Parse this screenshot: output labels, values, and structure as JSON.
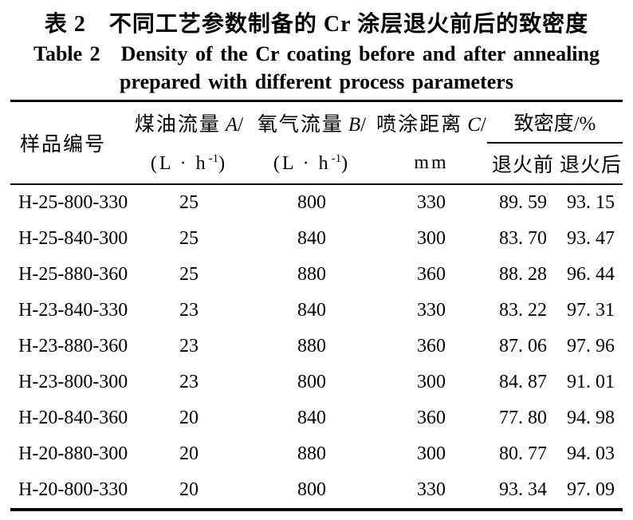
{
  "colors": {
    "background": "#ffffff",
    "text": "#000000",
    "rule": "#000000"
  },
  "titles": {
    "zh": "表 2　不同工艺参数制备的 Cr 涂层退火前后的致密度",
    "en_line1": "Table 2　Density of the Cr coating before and after annealing",
    "en_line2": "prepared with different process parameters"
  },
  "table": {
    "header": {
      "sample_id": "样品编号",
      "kerosene": {
        "zh": "煤油流量",
        "var": "A",
        "slash": "/",
        "unit": {
          "base": "(L · h",
          "sup": "-1",
          "close": ")"
        }
      },
      "oxygen": {
        "zh": "氧气流量",
        "var": "B",
        "slash": "/",
        "unit": {
          "base": "(L · h",
          "sup": "-1",
          "close": ")"
        }
      },
      "distance": {
        "zh": "喷涂距离",
        "var": "C",
        "slash": "/",
        "unit": {
          "base": "mm",
          "sup": "",
          "close": ""
        }
      },
      "density_group": "致密度/%",
      "before": "退火前",
      "after": "退火后"
    },
    "rows": [
      {
        "id": "H-25-800-330",
        "kerosene": "25",
        "oxygen": "800",
        "distance": "330",
        "before": "89. 59",
        "after": "93. 15"
      },
      {
        "id": "H-25-840-300",
        "kerosene": "25",
        "oxygen": "840",
        "distance": "300",
        "before": "83. 70",
        "after": "93. 47"
      },
      {
        "id": "H-25-880-360",
        "kerosene": "25",
        "oxygen": "880",
        "distance": "360",
        "before": "88. 28",
        "after": "96. 44"
      },
      {
        "id": "H-23-840-330",
        "kerosene": "23",
        "oxygen": "840",
        "distance": "330",
        "before": "83. 22",
        "after": "97. 31"
      },
      {
        "id": "H-23-880-360",
        "kerosene": "23",
        "oxygen": "880",
        "distance": "360",
        "before": "87. 06",
        "after": "97. 96"
      },
      {
        "id": "H-23-800-300",
        "kerosene": "23",
        "oxygen": "800",
        "distance": "300",
        "before": "84. 87",
        "after": "91. 01"
      },
      {
        "id": "H-20-840-360",
        "kerosene": "20",
        "oxygen": "840",
        "distance": "360",
        "before": "77. 80",
        "after": "94. 98"
      },
      {
        "id": "H-20-880-300",
        "kerosene": "20",
        "oxygen": "880",
        "distance": "300",
        "before": "80. 77",
        "after": "94. 03"
      },
      {
        "id": "H-20-800-330",
        "kerosene": "20",
        "oxygen": "800",
        "distance": "330",
        "before": "93. 34",
        "after": "97. 09"
      }
    ]
  }
}
